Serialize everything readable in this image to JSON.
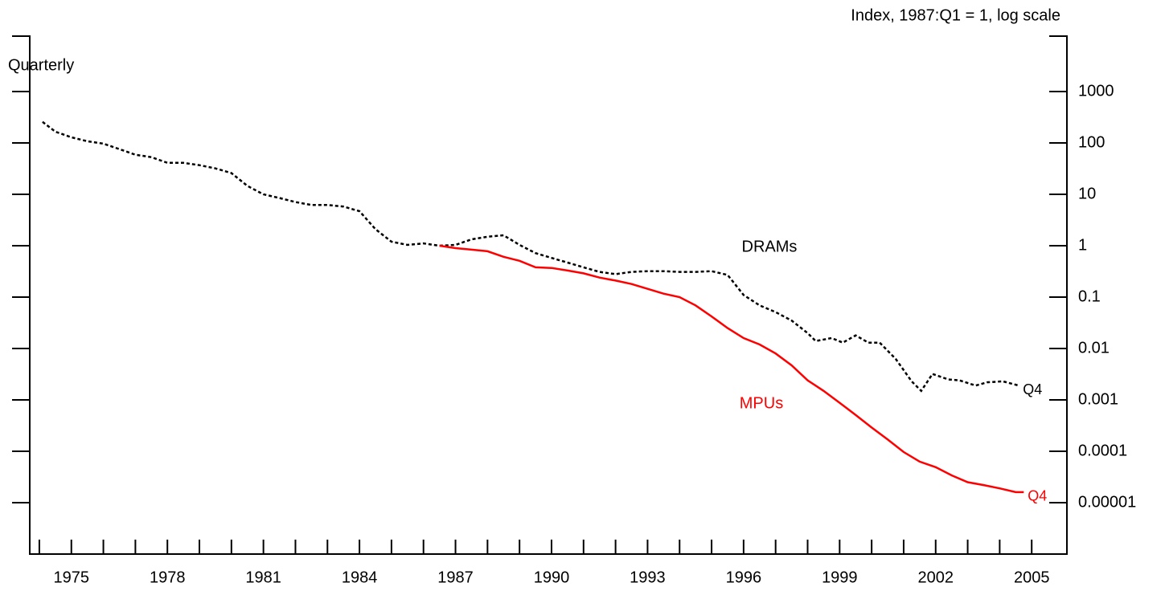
{
  "chart_data": {
    "type": "line",
    "title": "Quarterly",
    "y_label": "Index, 1987:Q1 = 1, log scale",
    "log_scale": true,
    "xlim": [
      1973.7,
      2006.1
    ],
    "xticks": [
      1975,
      1978,
      1981,
      1984,
      1987,
      1990,
      1993,
      1996,
      1999,
      2002,
      2005
    ],
    "xminor_ticks": [
      1974,
      1975,
      1976,
      1977,
      1978,
      1979,
      1980,
      1981,
      1982,
      1983,
      1984,
      1985,
      1986,
      1987,
      1988,
      1989,
      1990,
      1991,
      1992,
      1993,
      1994,
      1995,
      1996,
      1997,
      1998,
      1999,
      2000,
      2001,
      2002,
      2003,
      2004,
      2005
    ],
    "ylim": [
      1e-06,
      12000
    ],
    "yticks": [
      1000,
      100,
      10,
      1,
      0.1,
      0.01,
      0.001,
      0.0001,
      {
        "value": 1e-05,
        "label": "0.00001"
      }
    ],
    "series": [
      {
        "name": "DRAMs",
        "color": "#000000",
        "dashed": true,
        "end_label": "Q4",
        "x": [
          1974.1,
          1974.5,
          1975,
          1975.5,
          1976,
          1976.5,
          1977,
          1977.5,
          1978,
          1978.5,
          1979,
          1979.5,
          1980,
          1980.5,
          1981,
          1981.5,
          1982,
          1982.5,
          1983,
          1983.5,
          1984,
          1984.5,
          1985,
          1985.5,
          1986,
          1986.5,
          1987,
          1987.5,
          1988,
          1988.5,
          1989,
          1989.5,
          1990,
          1990.5,
          1991,
          1991.5,
          1992,
          1992.5,
          1993,
          1993.5,
          1994,
          1994.5,
          1995,
          1995.5,
          1996,
          1996.5,
          1997,
          1997.5,
          1998,
          1998.25,
          1998.75,
          1999.1,
          1999.5,
          1999.9,
          2000.25,
          2000.75,
          2001.25,
          2001.55,
          2001.9,
          2002.4,
          2002.75,
          2003.25,
          2003.6,
          2004.1,
          2004.6
        ],
        "values": [
          257,
          166,
          129,
          108,
          97,
          76,
          59,
          53,
          41,
          41,
          37,
          32,
          26,
          14.6,
          10,
          8.5,
          7.1,
          6.2,
          6.2,
          5.8,
          4.7,
          2.1,
          1.2,
          1.04,
          1.11,
          1,
          1.04,
          1.33,
          1.5,
          1.6,
          1.04,
          0.72,
          0.58,
          0.47,
          0.38,
          0.31,
          0.28,
          0.31,
          0.32,
          0.32,
          0.31,
          0.31,
          0.32,
          0.27,
          0.11,
          0.069,
          0.051,
          0.035,
          0.02,
          0.014,
          0.016,
          0.013,
          0.018,
          0.013,
          0.013,
          0.0063,
          0.0023,
          0.0015,
          0.0032,
          0.0025,
          0.0024,
          0.0019,
          0.0022,
          0.0023,
          0.0019
        ]
      },
      {
        "name": "MPUs",
        "color": "#ff0000",
        "dashed": false,
        "end_label": "Q4",
        "x": [
          1986.5,
          1987,
          1987.5,
          1988,
          1988.5,
          1989,
          1989.5,
          1990,
          1990.5,
          1991,
          1991.5,
          1992,
          1992.5,
          1993,
          1993.5,
          1994,
          1994.5,
          1995,
          1995.5,
          1996,
          1996.5,
          1997,
          1997.5,
          1998,
          1998.5,
          1999,
          1999.5,
          2000,
          2000.5,
          2001,
          2001.5,
          2002,
          2002.5,
          2003,
          2003.5,
          2004,
          2004.5,
          2004.75
        ],
        "values": [
          1,
          0.9,
          0.84,
          0.78,
          0.61,
          0.51,
          0.38,
          0.37,
          0.33,
          0.29,
          0.24,
          0.21,
          0.18,
          0.145,
          0.117,
          0.1,
          0.069,
          0.042,
          0.025,
          0.016,
          0.012,
          0.008,
          0.0047,
          0.0024,
          0.0015,
          0.00088,
          0.00051,
          0.00029,
          0.00017,
          9.7e-05,
          6.3e-05,
          4.9e-05,
          3.4e-05,
          2.5e-05,
          2.2e-05,
          1.9e-05,
          1.6e-05,
          1.6e-05
        ]
      }
    ]
  }
}
